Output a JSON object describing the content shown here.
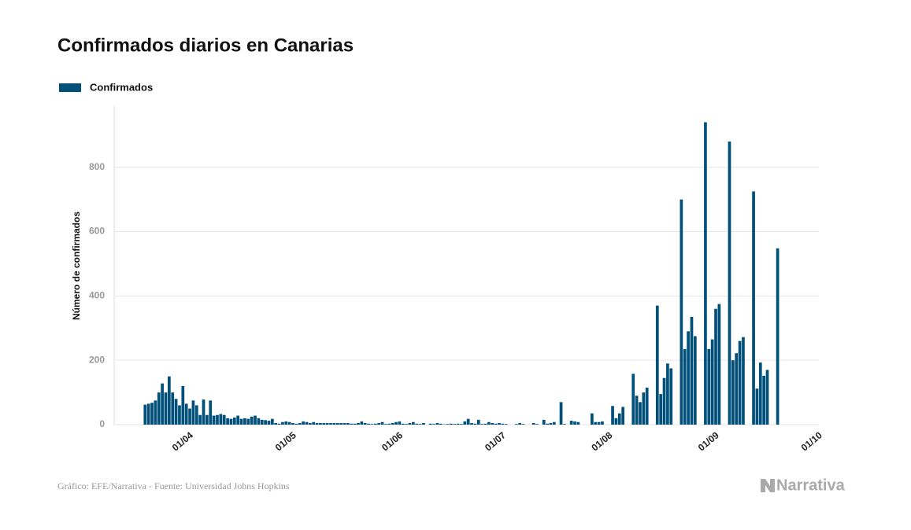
{
  "chart_data": {
    "type": "bar",
    "title": "Confirmados diarios en Canarias",
    "y_label": "Número de confirmados",
    "source": "Gráfico: EFE/Narrativa - Fuente: Universidad Johns Hopkins",
    "brand": "Narrativa",
    "color": "#00507a",
    "xlim": [
      "12/03",
      "03/10"
    ],
    "xticks": [
      "01/04",
      "01/05",
      "01/06",
      "01/07",
      "01/08",
      "01/09",
      "01/10"
    ],
    "ylim": [
      0,
      990
    ],
    "yticks": [
      0,
      200,
      400,
      600,
      800
    ],
    "grid": true,
    "legend": "top-left",
    "series": [
      {
        "name": "Confirmados",
        "color": "#00507a",
        "x": [
          "21/03",
          "22/03",
          "23/03",
          "24/03",
          "25/03",
          "26/03",
          "27/03",
          "28/03",
          "29/03",
          "30/03",
          "31/03",
          "01/04",
          "02/04",
          "03/04",
          "04/04",
          "05/04",
          "06/04",
          "07/04",
          "08/04",
          "09/04",
          "10/04",
          "11/04",
          "12/04",
          "13/04",
          "14/04",
          "15/04",
          "16/04",
          "17/04",
          "18/04",
          "19/04",
          "20/04",
          "21/04",
          "22/04",
          "23/04",
          "24/04",
          "25/04",
          "26/04",
          "27/04",
          "28/04",
          "29/04",
          "30/04",
          "01/05",
          "02/05",
          "03/05",
          "04/05",
          "05/05",
          "06/05",
          "07/05",
          "08/05",
          "09/05",
          "10/05",
          "11/05",
          "12/05",
          "13/05",
          "14/05",
          "15/05",
          "16/05",
          "17/05",
          "18/05",
          "19/05",
          "20/05",
          "21/05",
          "22/05",
          "23/05",
          "24/05",
          "25/05",
          "26/05",
          "27/05",
          "28/05",
          "29/05",
          "30/05",
          "31/05",
          "01/06",
          "02/06",
          "03/06",
          "04/06",
          "05/06",
          "06/06",
          "07/06",
          "08/06",
          "09/06",
          "10/06",
          "11/06",
          "12/06",
          "13/06",
          "14/06",
          "15/06",
          "16/06",
          "17/06",
          "18/06",
          "19/06",
          "20/06",
          "21/06",
          "22/06",
          "23/06",
          "24/06",
          "25/06",
          "26/06",
          "27/06",
          "28/06",
          "29/06",
          "30/06",
          "01/07",
          "02/07",
          "03/07",
          "04/07",
          "05/07",
          "06/07",
          "07/07",
          "08/07",
          "09/07",
          "10/07",
          "11/07",
          "12/07",
          "13/07",
          "14/07",
          "15/07",
          "16/07",
          "17/07",
          "18/07",
          "19/07",
          "20/07",
          "21/07",
          "22/07",
          "23/07",
          "24/07",
          "25/07",
          "26/07",
          "27/07",
          "28/07",
          "29/07",
          "30/07",
          "31/07",
          "01/08",
          "02/08",
          "03/08",
          "04/08",
          "05/08",
          "06/08",
          "07/08",
          "08/08",
          "09/08",
          "10/08",
          "11/08",
          "12/08",
          "13/08",
          "14/08",
          "15/08",
          "16/08",
          "17/08",
          "18/08",
          "19/08",
          "20/08",
          "21/08",
          "22/08",
          "23/08",
          "24/08",
          "25/08",
          "26/08",
          "27/08",
          "28/08",
          "29/08",
          "30/08",
          "31/08",
          "01/09",
          "02/09",
          "03/09",
          "04/09",
          "05/09",
          "06/09",
          "07/09",
          "08/09",
          "09/09",
          "10/09",
          "11/09",
          "12/09",
          "13/09",
          "14/09",
          "15/09",
          "16/09",
          "17/09",
          "18/09",
          "19/09",
          "20/09",
          "21/09"
        ],
        "values": [
          62,
          65,
          68,
          75,
          100,
          128,
          100,
          150,
          100,
          80,
          60,
          120,
          65,
          50,
          75,
          60,
          30,
          78,
          30,
          75,
          28,
          30,
          33,
          30,
          20,
          18,
          22,
          28,
          18,
          20,
          18,
          25,
          28,
          20,
          15,
          14,
          12,
          18,
          5,
          3,
          8,
          10,
          8,
          5,
          3,
          5,
          10,
          8,
          5,
          8,
          5,
          5,
          5,
          5,
          5,
          5,
          5,
          5,
          5,
          5,
          3,
          3,
          5,
          10,
          5,
          3,
          2,
          3,
          5,
          8,
          2,
          3,
          5,
          8,
          10,
          3,
          2,
          5,
          8,
          3,
          2,
          5,
          0,
          3,
          2,
          5,
          3,
          1,
          2,
          3,
          2,
          3,
          2,
          10,
          18,
          5,
          3,
          15,
          2,
          3,
          8,
          5,
          3,
          5,
          3,
          2,
          0,
          0,
          2,
          5,
          2,
          0,
          0,
          5,
          2,
          0,
          15,
          3,
          5,
          8,
          0,
          70,
          2,
          0,
          12,
          10,
          8,
          0,
          0,
          0,
          35,
          8,
          8,
          10,
          0,
          0,
          58,
          20,
          35,
          55,
          0,
          0,
          158,
          90,
          70,
          100,
          115,
          0,
          0,
          370,
          95,
          145,
          190,
          175,
          0,
          0,
          700,
          235,
          290,
          335,
          275,
          0,
          0,
          940,
          235,
          265,
          360,
          375,
          0,
          0,
          880,
          200,
          222,
          260,
          272,
          0,
          0,
          725,
          112,
          193,
          152,
          170,
          0,
          0,
          548
        ]
      }
    ]
  }
}
